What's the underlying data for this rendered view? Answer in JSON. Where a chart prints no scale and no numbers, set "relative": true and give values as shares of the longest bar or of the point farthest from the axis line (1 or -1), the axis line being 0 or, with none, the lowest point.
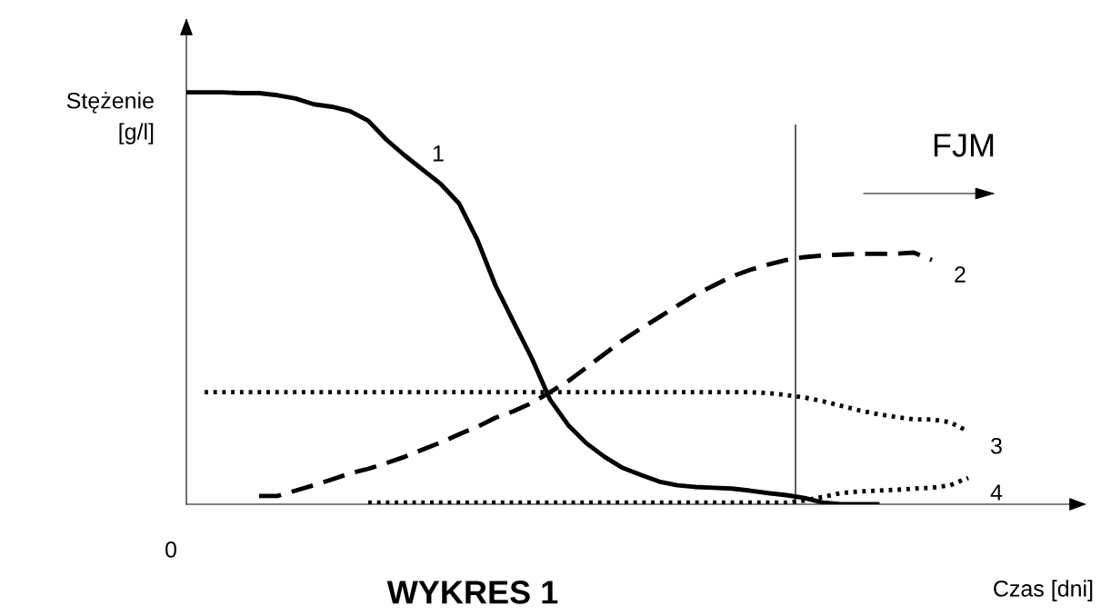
{
  "chart_data": {
    "type": "line",
    "relative": true,
    "title": "WYKRES 1",
    "xlabel": "Czas [dni]",
    "ylabel": "Stężenie\n[g/l]",
    "annotations": [
      "0",
      "FJM"
    ],
    "categories": [
      null,
      null,
      null,
      null,
      null,
      null,
      null,
      null,
      null,
      null,
      null,
      null,
      null,
      null,
      null,
      null,
      null,
      null,
      null,
      null,
      null,
      null,
      null,
      null,
      null,
      null,
      null,
      null,
      null,
      null,
      null,
      null,
      null,
      null,
      null,
      null,
      null,
      null,
      null,
      null,
      null,
      null,
      null,
      null
    ],
    "series": [
      {
        "name": "1",
        "color": "#000000",
        "line_style": "solid",
        "values": [
          1,
          1,
          1,
          0.998,
          0.998,
          0.993,
          0.985,
          0.971,
          0.965,
          0.954,
          0.931,
          0.885,
          0.847,
          0.812,
          0.777,
          0.73,
          0.642,
          0.531,
          0.442,
          0.354,
          0.254,
          0.192,
          0.148,
          0.115,
          0.088,
          0.071,
          0.055,
          0.046,
          0.042,
          0.04,
          0.038,
          0.033,
          0.027,
          0.022,
          0.015,
          0.004,
          0,
          0,
          0,
          null,
          null,
          null,
          null,
          null
        ]
      },
      {
        "name": "2",
        "color": "#000000",
        "line_style": "dashed",
        "values": [
          null,
          null,
          null,
          null,
          0.02,
          0.02,
          0.033,
          0.046,
          0.06,
          0.075,
          0.086,
          0.1,
          0.115,
          0.133,
          0.15,
          0.17,
          0.188,
          0.21,
          0.226,
          0.246,
          0.272,
          0.299,
          0.332,
          0.365,
          0.398,
          0.427,
          0.454,
          0.482,
          0.509,
          0.531,
          0.553,
          0.569,
          0.582,
          0.593,
          0.6,
          0.604,
          0.606,
          0.608,
          0.608,
          0.608,
          0.611,
          0.593,
          null,
          null
        ]
      },
      {
        "name": "3",
        "color": "#000000",
        "line_style": "dotted",
        "values": [
          null,
          0.272,
          0.272,
          0.272,
          0.272,
          0.272,
          0.272,
          0.272,
          0.272,
          0.272,
          0.272,
          0.272,
          0.272,
          0.272,
          0.272,
          0.272,
          0.272,
          0.272,
          0.272,
          0.272,
          0.272,
          0.272,
          0.272,
          0.272,
          0.272,
          0.272,
          0.272,
          0.272,
          0.272,
          0.272,
          0.272,
          0.272,
          0.27,
          0.265,
          0.259,
          0.25,
          0.239,
          0.228,
          0.219,
          0.212,
          0.206,
          0.206,
          0.199,
          0.177
        ]
      },
      {
        "name": "4",
        "color": "#000000",
        "line_style": "dotted",
        "values": [
          null,
          null,
          null,
          null,
          null,
          null,
          null,
          null,
          null,
          null,
          0.004,
          0.004,
          0.004,
          0.004,
          0.004,
          0.004,
          0.004,
          0.004,
          0.004,
          0.004,
          0.004,
          0.004,
          0.004,
          0.004,
          0.004,
          0.004,
          0.004,
          0.004,
          0.004,
          0.004,
          0.004,
          0.004,
          0.004,
          0.004,
          0.009,
          0.018,
          0.027,
          0.031,
          0.033,
          0.035,
          0.038,
          0.04,
          0.046,
          0.064
        ]
      }
    ],
    "legend": false,
    "marker": "none"
  }
}
